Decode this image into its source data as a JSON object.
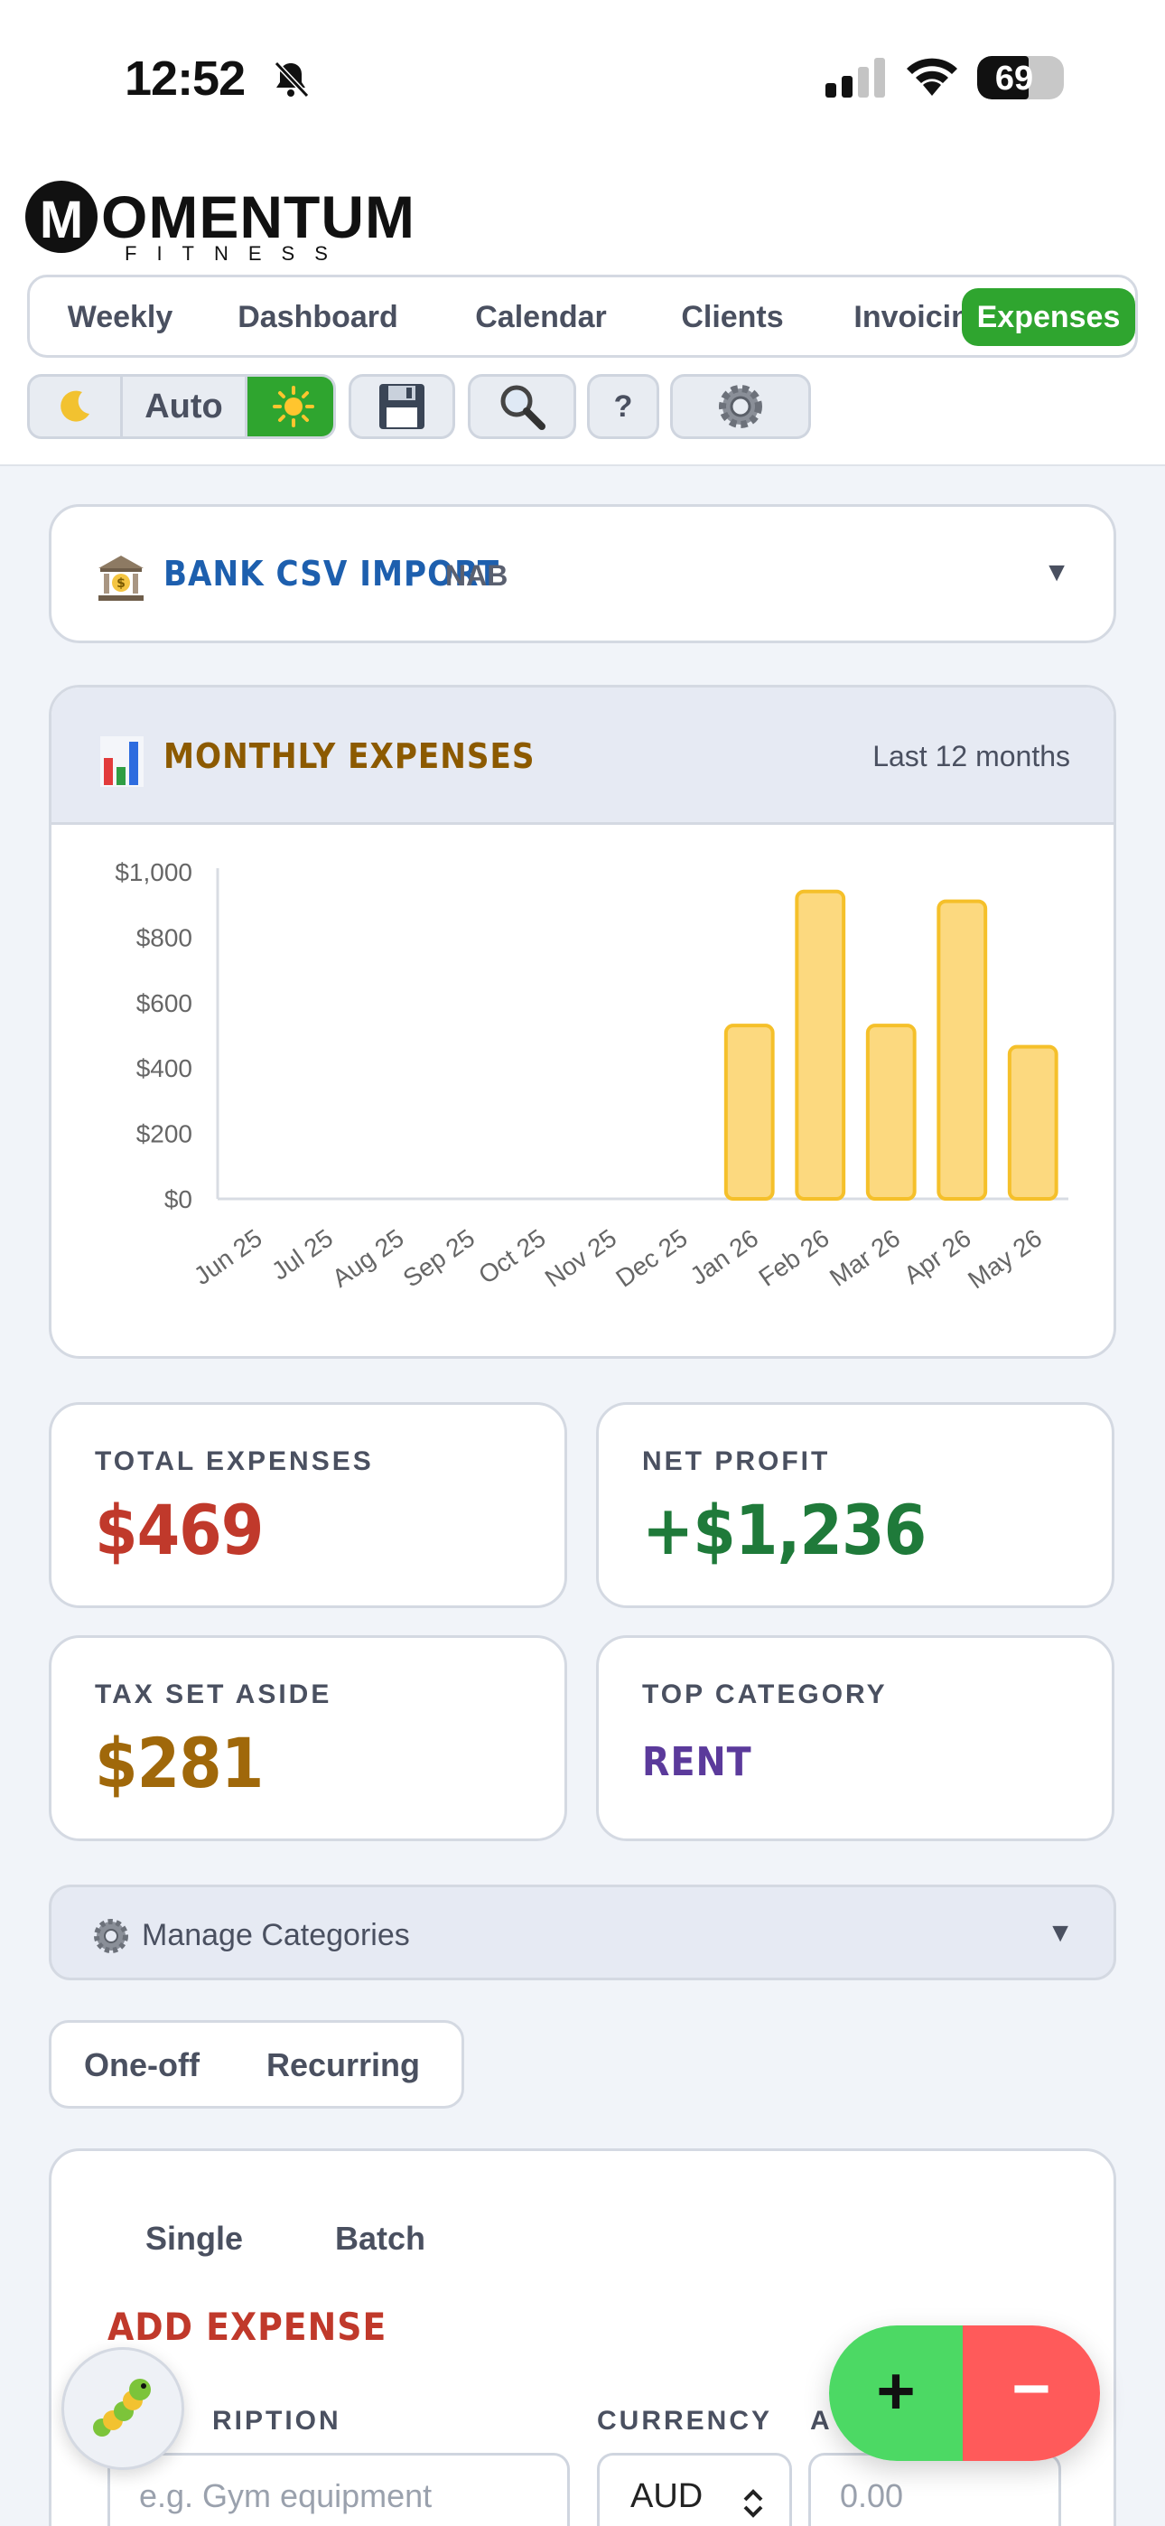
{
  "status": {
    "time": "12:52",
    "battery": "69",
    "battery_level": 0.69
  },
  "brand": {
    "logo_letter": "M",
    "name": "OMENTUM",
    "tagline": "FITNESS"
  },
  "nav": {
    "tabs": [
      "Weekly",
      "Dashboard",
      "Calendar",
      "Clients",
      "Invoicing",
      "Expenses"
    ],
    "active": "Expenses"
  },
  "toolbar": {
    "theme_auto": "Auto",
    "help": "?"
  },
  "bank_import": {
    "title": "BANK CSV IMPORT",
    "bank": "NAB"
  },
  "monthly_expenses": {
    "title": "MONTHLY EXPENSES",
    "range": "Last 12 months"
  },
  "chart_data": {
    "type": "bar",
    "categories": [
      "Jun 25",
      "Jul 25",
      "Aug 25",
      "Sep 25",
      "Oct 25",
      "Nov 25",
      "Dec 25",
      "Jan 26",
      "Feb 26",
      "Mar 26",
      "Apr 26",
      "May 26"
    ],
    "values": [
      0,
      0,
      0,
      0,
      0,
      0,
      0,
      530,
      940,
      530,
      910,
      465
    ],
    "yticks": [
      "$0",
      "$200",
      "$400",
      "$600",
      "$800",
      "$1,000"
    ],
    "ylim": [
      0,
      1000
    ],
    "grid": false,
    "bar_color": "#fcd97f",
    "bar_border": "#f5c02a"
  },
  "stats": {
    "total_expenses": {
      "label": "TOTAL EXPENSES",
      "value": "$469",
      "color": "#c0392b"
    },
    "net_profit": {
      "label": "NET PROFIT",
      "value": "+$1,236",
      "color": "#1f7a3a"
    },
    "tax_set_aside": {
      "label": "TAX SET ASIDE",
      "value": "$281",
      "color": "#a0680a"
    },
    "top_category": {
      "label": "TOP CATEGORY",
      "value": "RENT",
      "color": "#5b3a9b"
    }
  },
  "manage_categories": {
    "label": "Manage Categories"
  },
  "expense_type": {
    "one_off": "One-off",
    "recurring": "Recurring"
  },
  "add_expense": {
    "mode_single": "Single",
    "mode_batch": "Batch",
    "title": "ADD EXPENSE",
    "description_label": "RIPTION",
    "description_placeholder": "e.g. Gym equipment",
    "currency_label": "CURRENCY",
    "currency_value": "AUD",
    "amount_label": "A",
    "amount_placeholder": "0.00"
  },
  "fab": {
    "plus": "+",
    "minus": "−"
  }
}
